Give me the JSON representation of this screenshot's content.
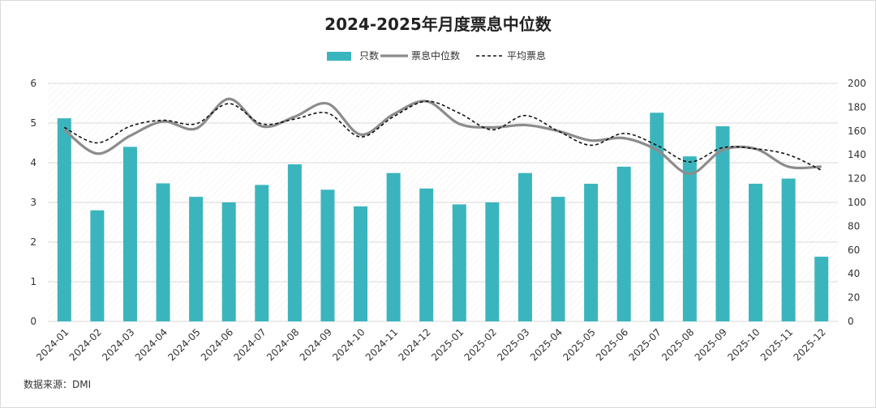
{
  "chart_data": {
    "type": "bar",
    "title": "2024-2025年月度票息中位数",
    "source": "数据来源：DMI",
    "categories": [
      "2024-01",
      "2024-02",
      "2024-03",
      "2024-04",
      "2024-05",
      "2024-06",
      "2024-07",
      "2024-08",
      "2024-09",
      "2024-10",
      "2024-11",
      "2024-12",
      "2025-01",
      "2025-02",
      "2025-03",
      "2025-04",
      "2025-05",
      "2025-06",
      "2025-07",
      "2025-08",
      "2025-09",
      "2025-10",
      "2025-11",
      "2025-12"
    ],
    "series": [
      {
        "name": "只数",
        "type": "bar",
        "axis": "left",
        "color": "#3bb5bd",
        "values": [
          5.12,
          2.8,
          4.4,
          3.48,
          3.14,
          3.0,
          3.44,
          3.96,
          3.32,
          2.9,
          3.74,
          3.35,
          2.95,
          3.0,
          3.74,
          3.14,
          3.47,
          3.9,
          5.26,
          4.16,
          4.92,
          3.47,
          3.6,
          1.63
        ]
      },
      {
        "name": "票息中位数",
        "type": "line",
        "axis": "right",
        "color": "#8c8c8c",
        "values": [
          161,
          141,
          156,
          168,
          162,
          187,
          164,
          172,
          183,
          157,
          174,
          185,
          166,
          163,
          165,
          160,
          152,
          154,
          144,
          124,
          144,
          145,
          130,
          130
        ]
      },
      {
        "name": "平均票息",
        "type": "line-dashed",
        "axis": "right",
        "color": "#111111",
        "values": [
          163,
          150,
          164,
          169,
          166,
          183,
          166,
          170,
          175,
          155,
          172,
          185,
          175,
          161,
          173,
          160,
          148,
          158,
          148,
          134,
          146,
          145,
          140,
          127
        ]
      }
    ],
    "left_axis": {
      "ylim": [
        0,
        6
      ],
      "ticks": [
        "0",
        "1",
        "2",
        "3",
        "4",
        "5",
        "6"
      ]
    },
    "right_axis": {
      "ylim": [
        0,
        200
      ],
      "ticks": [
        "0",
        "20",
        "40",
        "60",
        "80",
        "100",
        "120",
        "140",
        "160",
        "180",
        "200"
      ]
    },
    "legend_position": "top-center",
    "grid": true
  }
}
